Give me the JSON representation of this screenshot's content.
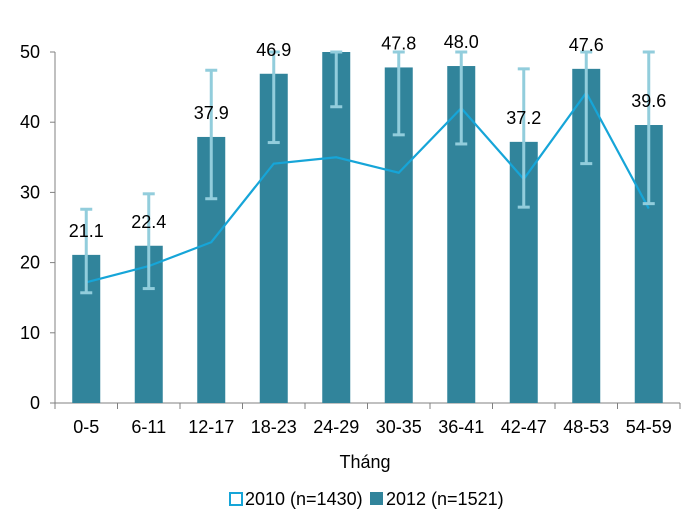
{
  "chart_data": {
    "type": "bar",
    "categories": [
      "0-5",
      "6-11",
      "12-17",
      "18-23",
      "24-29",
      "30-35",
      "36-41",
      "42-47",
      "48-53",
      "54-59"
    ],
    "xlabel": "Tháng",
    "ylabel": "",
    "ylim": [
      0,
      50
    ],
    "yticks": [
      0,
      10,
      20,
      30,
      40,
      50
    ],
    "grid": false,
    "legend_position": "bottom",
    "series": [
      {
        "name": "2010 (n=1430)",
        "type": "line",
        "color": "#16a5d8",
        "values": [
          17.2,
          19.5,
          22.9,
          34.1,
          35.0,
          32.8,
          42.0,
          31.9,
          44.2,
          27.7
        ]
      },
      {
        "name": "2012 (n=1521)",
        "type": "bar",
        "color": "#31849b",
        "values": [
          21.1,
          22.4,
          37.9,
          46.9,
          50.0,
          47.8,
          48.0,
          37.2,
          47.6,
          39.6
        ],
        "data_labels": [
          "21.1",
          "22.4",
          "37.9",
          "46.9",
          "",
          "47.8",
          "48.0",
          "37.2",
          "47.6",
          "39.6"
        ],
        "error_low": [
          15.7,
          16.3,
          29.1,
          37.1,
          42.2,
          38.2,
          36.9,
          27.9,
          34.1,
          28.4
        ],
        "error_high": [
          27.6,
          29.8,
          47.4,
          50.0,
          50.0,
          50.0,
          50.0,
          47.6,
          50.0,
          50.0
        ],
        "error_color": "#92cddc"
      }
    ]
  }
}
